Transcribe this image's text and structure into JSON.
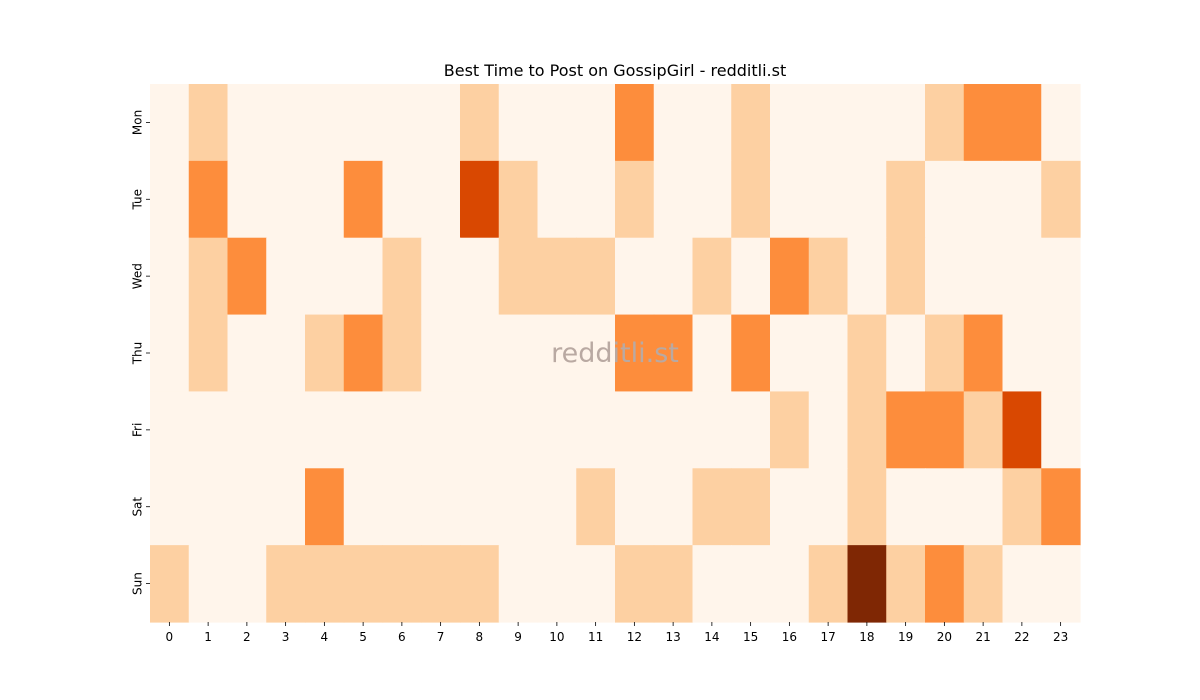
{
  "chart_data": {
    "type": "heatmap",
    "title": "Best Time to Post on GossipGirl - redditli.st",
    "watermark": "redditli.st",
    "x_categories": [
      "0",
      "1",
      "2",
      "3",
      "4",
      "5",
      "6",
      "7",
      "8",
      "9",
      "10",
      "11",
      "12",
      "13",
      "14",
      "15",
      "16",
      "17",
      "18",
      "19",
      "20",
      "21",
      "22",
      "23"
    ],
    "y_categories": [
      "Mon",
      "Tue",
      "Wed",
      "Thu",
      "Fri",
      "Sat",
      "Sun"
    ],
    "xlabel": "",
    "ylabel": "",
    "colorbar": false,
    "color_levels": [
      "#fff5eb",
      "#fdd0a2",
      "#fd8d3c",
      "#d94801",
      "#7f2704"
    ],
    "values": [
      [
        0,
        1,
        0,
        0,
        0,
        0,
        0,
        0,
        1,
        0,
        0,
        0,
        2,
        0,
        0,
        1,
        0,
        0,
        0,
        0,
        1,
        2,
        2,
        0
      ],
      [
        0,
        2,
        0,
        0,
        0,
        2,
        0,
        0,
        3,
        1,
        0,
        0,
        1,
        0,
        0,
        1,
        0,
        0,
        0,
        1,
        0,
        0,
        0,
        1
      ],
      [
        0,
        1,
        2,
        0,
        0,
        0,
        1,
        0,
        0,
        1,
        1,
        1,
        0,
        0,
        1,
        0,
        2,
        1,
        0,
        1,
        0,
        0,
        0,
        0
      ],
      [
        0,
        1,
        0,
        0,
        1,
        2,
        1,
        0,
        0,
        0,
        0,
        0,
        2,
        2,
        0,
        2,
        0,
        0,
        1,
        0,
        1,
        2,
        0,
        0
      ],
      [
        0,
        0,
        0,
        0,
        0,
        0,
        0,
        0,
        0,
        0,
        0,
        0,
        0,
        0,
        0,
        0,
        1,
        0,
        1,
        2,
        2,
        1,
        3,
        0
      ],
      [
        0,
        0,
        0,
        0,
        2,
        0,
        0,
        0,
        0,
        0,
        0,
        1,
        0,
        0,
        1,
        1,
        0,
        0,
        1,
        0,
        0,
        0,
        1,
        2
      ],
      [
        1,
        0,
        0,
        1,
        1,
        1,
        1,
        1,
        1,
        0,
        0,
        0,
        1,
        1,
        0,
        0,
        0,
        1,
        4,
        1,
        2,
        1,
        0,
        0
      ]
    ]
  }
}
